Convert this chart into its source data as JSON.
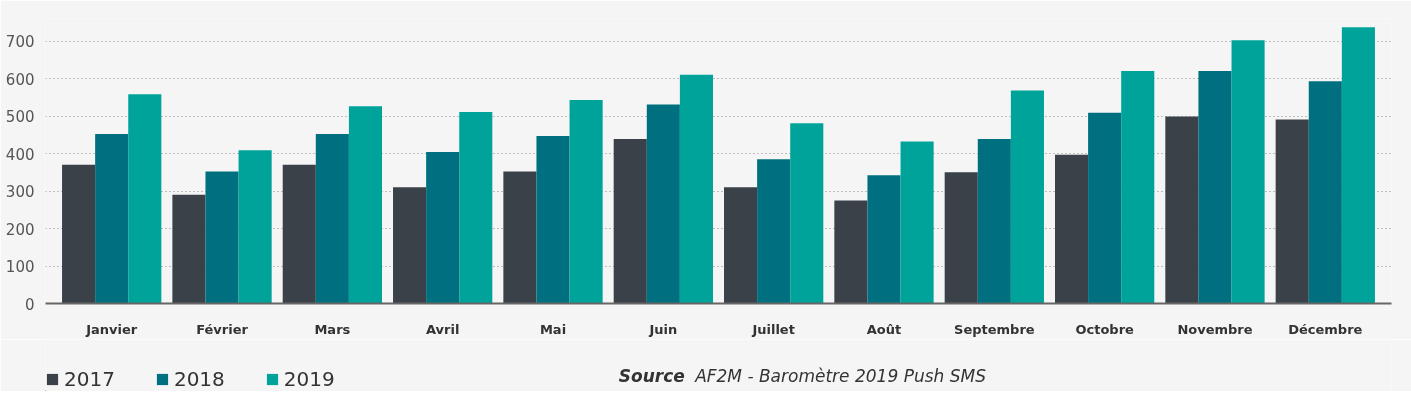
{
  "chart_data": {
    "type": "bar",
    "categories": [
      "Janvier",
      "Février",
      "Mars",
      "Avril",
      "Mai",
      "Juin",
      "Juillet",
      "Août",
      "Septembre",
      "Octobre",
      "Novembre",
      "Décembre"
    ],
    "series": [
      {
        "name": "2017",
        "color": "#3a4148",
        "values": [
          370,
          290,
          370,
          310,
          352,
          439,
          310,
          275,
          350,
          397,
          499,
          491
        ]
      },
      {
        "name": "2018",
        "color": "#007080",
        "values": [
          452,
          352,
          452,
          404,
          447,
          531,
          385,
          342,
          439,
          509,
          620,
          593
        ]
      },
      {
        "name": "2019",
        "color": "#00a39a",
        "values": [
          558,
          409,
          526,
          511,
          543,
          610,
          481,
          432,
          568,
          620,
          702,
          737
        ]
      }
    ],
    "ylim": [
      0,
      760
    ],
    "yticks": [
      0,
      100,
      200,
      300,
      400,
      500,
      600,
      700
    ],
    "grid": "y",
    "legend": "bottom left",
    "annotations": [
      "Source",
      "AF2M - Baromètre 2019 Push SMS"
    ]
  }
}
